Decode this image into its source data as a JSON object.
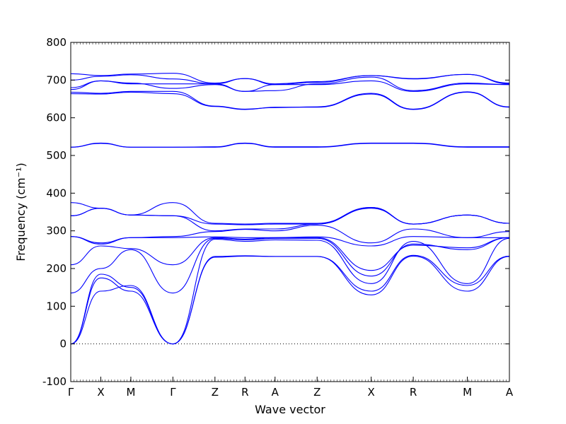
{
  "chart_data": {
    "type": "line",
    "title": "",
    "xlabel": "Wave vector",
    "ylabel": "Frequency (cm⁻¹)",
    "ylim": [
      -100,
      800
    ],
    "yticks": [
      -100,
      0,
      100,
      200,
      300,
      400,
      500,
      600,
      700,
      800
    ],
    "xticks": [
      {
        "label": "Γ",
        "x": 0.0
      },
      {
        "label": "X",
        "x": 0.5
      },
      {
        "label": "M",
        "x": 1.0
      },
      {
        "label": "Γ",
        "x": 1.7
      },
      {
        "label": "Z",
        "x": 2.4
      },
      {
        "label": "R",
        "x": 2.9
      },
      {
        "label": "A",
        "x": 3.4
      },
      {
        "label": "Z",
        "x": 4.1
      },
      {
        "label": "X",
        "x": 5.0
      },
      {
        "label": "R",
        "x": 5.7
      },
      {
        "label": "M",
        "x": 6.6
      },
      {
        "label": "A",
        "x": 7.3
      }
    ],
    "xlim": [
      0,
      7.3
    ],
    "zero_line": true,
    "line_color": "#0000ff",
    "series": [
      {
        "x": [
          0,
          0.5,
          1,
          1.7,
          2.4,
          2.9,
          3.4,
          4.1,
          5,
          5.7,
          6.6,
          7.3
        ],
        "y": [
          0,
          175,
          140,
          0,
          230,
          233,
          232,
          232,
          130,
          233,
          140,
          232
        ]
      },
      {
        "x": [
          0,
          0.5,
          1,
          1.7,
          2.4,
          2.9,
          3.4,
          4.1,
          5,
          5.7,
          6.6,
          7.3
        ],
        "y": [
          0,
          140,
          155,
          0,
          232,
          234,
          232,
          232,
          140,
          235,
          155,
          233
        ]
      },
      {
        "x": [
          0,
          0.5,
          1,
          1.7,
          2.4,
          2.9,
          3.4,
          4.1,
          5,
          5.7,
          6.6,
          7.3
        ],
        "y": [
          0,
          185,
          150,
          0,
          278,
          272,
          276,
          275,
          160,
          272,
          160,
          280
        ]
      },
      {
        "x": [
          0,
          0.5,
          1,
          1.7,
          2.4,
          2.9,
          3.4,
          4.1,
          5,
          5.7,
          6.6,
          7.3
        ],
        "y": [
          135,
          200,
          250,
          135,
          280,
          276,
          280,
          280,
          180,
          265,
          250,
          282
        ]
      },
      {
        "x": [
          0,
          0.5,
          1,
          1.7,
          2.4,
          2.9,
          3.4,
          4.1,
          5,
          5.7,
          6.6,
          7.3
        ],
        "y": [
          210,
          260,
          253,
          210,
          282,
          278,
          282,
          282,
          195,
          262,
          255,
          282
        ]
      },
      {
        "x": [
          0,
          0.5,
          1,
          1.7,
          2.4,
          2.9,
          3.4,
          4.1,
          5,
          5.7,
          6.6,
          7.3
        ],
        "y": [
          285,
          265,
          282,
          282,
          284,
          282,
          282,
          284,
          260,
          285,
          282,
          282
        ]
      },
      {
        "x": [
          0,
          0.5,
          1,
          1.7,
          2.4,
          2.9,
          3.4,
          4.1,
          5,
          5.7,
          6.6,
          7.3
        ],
        "y": [
          285,
          268,
          282,
          285,
          298,
          304,
          300,
          315,
          268,
          305,
          282,
          298
        ]
      },
      {
        "x": [
          0,
          0.5,
          1,
          1.7,
          2.4,
          2.9,
          3.4,
          4.1,
          5,
          5.7,
          6.6,
          7.3
        ],
        "y": [
          340,
          360,
          342,
          340,
          300,
          305,
          305,
          318,
          360,
          318,
          342,
          320
        ]
      },
      {
        "x": [
          0,
          0.5,
          1,
          1.7,
          2.4,
          2.9,
          3.4,
          4.1,
          5,
          5.7,
          6.6,
          7.3
        ],
        "y": [
          340,
          360,
          342,
          340,
          318,
          316,
          318,
          318,
          362,
          318,
          342,
          320
        ]
      },
      {
        "x": [
          0,
          0.5,
          1,
          1.7,
          2.4,
          2.9,
          3.4,
          4.1,
          5,
          5.7,
          6.6,
          7.3
        ],
        "y": [
          375,
          360,
          342,
          375,
          320,
          318,
          320,
          320,
          362,
          318,
          342,
          320
        ]
      },
      {
        "x": [
          0,
          0.5,
          1,
          1.7,
          2.4,
          2.9,
          3.4,
          4.1,
          5,
          5.7,
          6.6,
          7.3
        ],
        "y": [
          522,
          532,
          522,
          522,
          522,
          532,
          522,
          522,
          532,
          532,
          522,
          522
        ]
      },
      {
        "x": [
          0,
          0.5,
          1,
          1.7,
          2.4,
          2.9,
          3.4,
          4.1,
          5,
          5.7,
          6.6,
          7.3
        ],
        "y": [
          522,
          533,
          522,
          522,
          523,
          533,
          523,
          523,
          533,
          533,
          523,
          523
        ]
      },
      {
        "x": [
          0,
          0.5,
          1,
          1.7,
          2.4,
          2.9,
          3.4,
          4.1,
          5,
          5.7,
          6.6,
          7.3
        ],
        "y": [
          664,
          663,
          668,
          664,
          630,
          622,
          628,
          628,
          663,
          622,
          668,
          628
        ]
      },
      {
        "x": [
          0,
          0.5,
          1,
          1.7,
          2.4,
          2.9,
          3.4,
          4.1,
          5,
          5.7,
          6.6,
          7.3
        ],
        "y": [
          668,
          665,
          670,
          670,
          631,
          623,
          627,
          629,
          665,
          623,
          669,
          629
        ]
      },
      {
        "x": [
          0,
          0.5,
          1,
          1.7,
          2.4,
          2.9,
          3.4,
          4.1,
          5,
          5.7,
          6.6,
          7.3
        ],
        "y": [
          675,
          698,
          692,
          678,
          688,
          670,
          688,
          688,
          698,
          670,
          690,
          688
        ]
      },
      {
        "x": [
          0,
          0.5,
          1,
          1.7,
          2.4,
          2.9,
          3.4,
          4.1,
          5,
          5.7,
          6.6,
          7.3
        ],
        "y": [
          680,
          698,
          690,
          690,
          690,
          670,
          672,
          690,
          708,
          672,
          692,
          688
        ]
      },
      {
        "x": [
          0,
          0.5,
          1,
          1.7,
          2.4,
          2.9,
          3.4,
          4.1,
          5,
          5.7,
          6.6,
          7.3
        ],
        "y": [
          700,
          710,
          714,
          703,
          690,
          704,
          688,
          694,
          712,
          703,
          715,
          690
        ]
      },
      {
        "x": [
          0,
          0.5,
          1,
          1.7,
          2.4,
          2.9,
          3.4,
          4.1,
          5,
          5.7,
          6.6,
          7.3
        ],
        "y": [
          717,
          712,
          716,
          718,
          692,
          704,
          690,
          696,
          712,
          704,
          715,
          692
        ]
      }
    ]
  }
}
